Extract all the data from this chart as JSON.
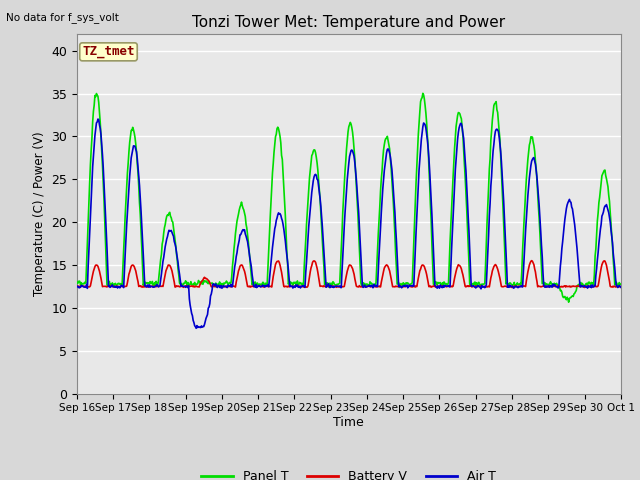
{
  "title": "Tonzi Tower Met: Temperature and Power",
  "xlabel": "Time",
  "ylabel": "Temperature (C) / Power (V)",
  "top_left_text": "No data for f_sys_volt",
  "annotation_label": "TZ_tmet",
  "annotation_color": "#880000",
  "annotation_bg": "#ffffcc",
  "annotation_border": "#999966",
  "ylim": [
    0,
    42
  ],
  "yticks": [
    0,
    5,
    10,
    15,
    20,
    25,
    30,
    35,
    40
  ],
  "bg_color": "#e8e8e8",
  "grid_color": "#ffffff",
  "x_tick_labels": [
    "Sep 16",
    "Sep 17",
    "Sep 18",
    "Sep 19",
    "Sep 20",
    "Sep 21",
    "Sep 22",
    "Sep 23",
    "Sep 24",
    "Sep 25",
    "Sep 26",
    "Sep 27",
    "Sep 28",
    "Sep 29",
    "Sep 30",
    "Oct 1"
  ],
  "panel_color": "#00dd00",
  "battery_color": "#dd0000",
  "air_color": "#0000cc",
  "line_width": 1.2,
  "legend_entries": [
    "Panel T",
    "Battery V",
    "Air T"
  ],
  "legend_colors": [
    "#00dd00",
    "#dd0000",
    "#0000cc"
  ],
  "figsize": [
    6.4,
    4.8
  ],
  "dpi": 100
}
